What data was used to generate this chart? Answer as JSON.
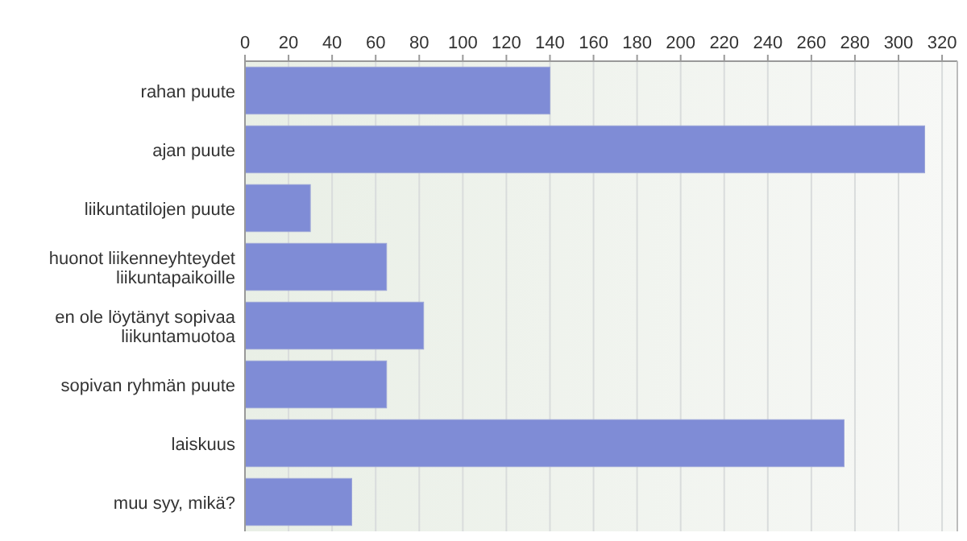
{
  "chart_data": {
    "type": "bar",
    "orientation": "horizontal",
    "categories": [
      "rahan puute",
      "ajan puute",
      "liikuntatilojen puute",
      "huonot liikenneyhteydet liikuntapaikoille",
      "en ole löytänyt sopivaa liikuntamuotoa",
      "sopivan ryhmän puute",
      "laiskuus",
      "muu syy, mikä?"
    ],
    "values": [
      140,
      312,
      30,
      65,
      82,
      65,
      275,
      49
    ],
    "color": "#7f8cd6",
    "xlim": [
      0,
      327
    ],
    "xticks": [
      0,
      20,
      40,
      60,
      80,
      100,
      120,
      140,
      160,
      180,
      200,
      220,
      240,
      260,
      280,
      300,
      320
    ],
    "grid": "x"
  }
}
